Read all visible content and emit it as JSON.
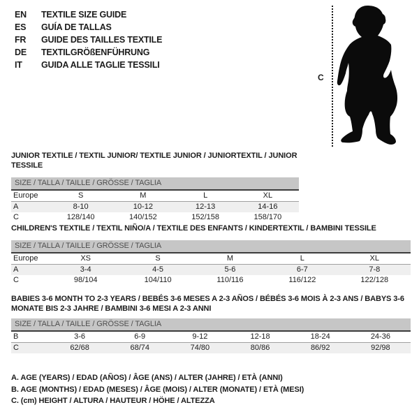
{
  "languages": [
    {
      "code": "EN",
      "title": "TEXTILE SIZE GUIDE"
    },
    {
      "code": "ES",
      "title": "GUÍA DE TALLAS"
    },
    {
      "code": "FR",
      "title": "GUIDE DES TAILLES TEXTILE"
    },
    {
      "code": "DE",
      "title": "TEXTILGRÖßENFÜHRUNG"
    },
    {
      "code": "IT",
      "title": "GUIDA ALLE TAGLIE TESSILI"
    }
  ],
  "figure": {
    "icon": "baby-silhouette-icon",
    "measure_label": "C"
  },
  "tables": [
    {
      "title": "JUNIOR TEXTILE / TEXTIL JUNIOR/ TEXTILE JUNIOR / JUNIORTEXTIL / JUNIOR TESSILE",
      "size_header": "SIZE / TALLA / TAILLE / GRÖSSE / TAGLIA",
      "rows": [
        {
          "label": "Europe",
          "is_header": true,
          "values": [
            "S",
            "M",
            "L",
            "XL"
          ]
        },
        {
          "label": "A",
          "values": [
            "8-10",
            "10-12",
            "12-13",
            "14-16"
          ]
        },
        {
          "label": "C",
          "values": [
            "128/140",
            "140/152",
            "152/158",
            "158/170"
          ]
        }
      ]
    },
    {
      "title": "CHILDREN'S TEXTILE / TEXTIL NIÑO/A / TEXTILE DES ENFANTS / KINDERTEXTIL / BAMBINI TESSILE",
      "size_header": "SIZE / TALLA / TAILLE / GRÖSSE / TAGLIA",
      "rows": [
        {
          "label": "Europe",
          "is_header": true,
          "values": [
            "XS",
            "S",
            "M",
            "L",
            "XL"
          ]
        },
        {
          "label": "A",
          "values": [
            "3-4",
            "4-5",
            "5-6",
            "6-7",
            "7-8"
          ]
        },
        {
          "label": "C",
          "values": [
            "98/104",
            "104/110",
            "110/116",
            "116/122",
            "122/128"
          ]
        }
      ]
    },
    {
      "title": "BABIES 3-6 MONTH TO 2-3 YEARS / BEBÉS 3-6 MESES A 2-3 AÑOS / BÉBÉS 3-6 MOIS À 2-3 ANS / BABYS 3-6 MONATE BIS 2-3 JAHRE / BAMBINI 3-6 MESI A 2-3 ANNI",
      "size_header": "SIZE / TALLA / TAILLE / GRÖSSE / TAGLIA",
      "rows": [
        {
          "label": "B",
          "is_header": true,
          "values": [
            "3-6",
            "6-9",
            "9-12",
            "12-18",
            "18-24",
            "24-36"
          ]
        },
        {
          "label": "C",
          "values": [
            "62/68",
            "68/74",
            "74/80",
            "80/86",
            "86/92",
            "92/98"
          ]
        }
      ]
    }
  ],
  "footnotes": [
    "A. AGE (YEARS) / EDAD (AÑOS) / ÂGE (ANS) / ALTER (JAHRE) / ETÀ (ANNI)",
    "B. AGE (MONTHS) / EDAD (MESES) / ÂGE (MOIS) / ALTER (MONATE) / ETÀ (MESI)",
    "C. (cm) HEIGHT / ALTURA / HAUTEUR / HÖHE / ALTEZZA"
  ],
  "colors": {
    "text": "#1c1c1c",
    "size_bar_bg": "#c6c6c6",
    "size_bar_text": "#4f4f4f",
    "size_bar_border": "#3c3c3c",
    "row_alt_bg": "#efefef",
    "colheader_underline": "#a0a0a0"
  }
}
